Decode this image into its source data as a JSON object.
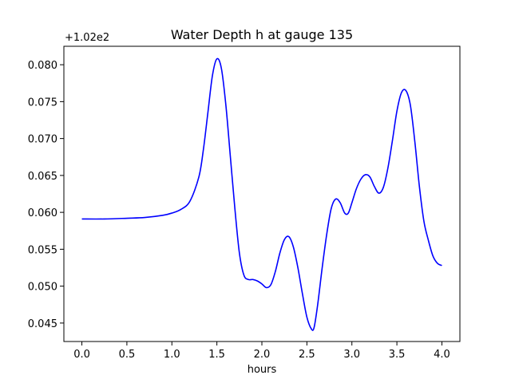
{
  "chart_data": {
    "type": "line",
    "title": "Water Depth h at gauge 135",
    "xlabel": "hours",
    "ylabel": "",
    "y_offset_label": "+1.02e2",
    "xlim": [
      -0.2,
      4.2
    ],
    "ylim": [
      0.0425,
      0.0825
    ],
    "x_ticks": [
      0.0,
      0.5,
      1.0,
      1.5,
      2.0,
      2.5,
      3.0,
      3.5,
      4.0
    ],
    "x_tick_labels": [
      "0.0",
      "0.5",
      "1.0",
      "1.5",
      "2.0",
      "2.5",
      "3.0",
      "3.5",
      "4.0"
    ],
    "y_ticks": [
      0.045,
      0.05,
      0.055,
      0.06,
      0.065,
      0.07,
      0.075,
      0.08
    ],
    "y_tick_labels": [
      "0.045",
      "0.050",
      "0.055",
      "0.060",
      "0.065",
      "0.070",
      "0.075",
      "0.080"
    ],
    "grid": false,
    "line_color": "#0000ff",
    "series": [
      {
        "x": [
          0.0,
          0.25,
          0.5,
          0.7,
          0.9,
          1.0,
          1.1,
          1.2,
          1.3,
          1.35,
          1.4,
          1.45,
          1.5,
          1.55,
          1.6,
          1.65,
          1.7,
          1.75,
          1.8,
          1.85,
          1.9,
          1.95,
          2.0,
          2.05,
          2.1,
          2.15,
          2.2,
          2.25,
          2.3,
          2.35,
          2.4,
          2.45,
          2.5,
          2.55,
          2.58,
          2.62,
          2.67,
          2.72,
          2.77,
          2.82,
          2.87,
          2.92,
          2.96,
          3.0,
          3.05,
          3.1,
          3.15,
          3.2,
          3.25,
          3.3,
          3.35,
          3.4,
          3.45,
          3.5,
          3.55,
          3.6,
          3.65,
          3.7,
          3.75,
          3.8,
          3.85,
          3.9,
          3.95,
          4.0
        ],
        "values": [
          0.0591,
          0.0591,
          0.0592,
          0.0593,
          0.0596,
          0.0599,
          0.0604,
          0.0615,
          0.0648,
          0.0685,
          0.0735,
          0.0785,
          0.0808,
          0.0795,
          0.0745,
          0.0675,
          0.0605,
          0.0545,
          0.0515,
          0.0509,
          0.0509,
          0.0507,
          0.0503,
          0.0498,
          0.0502,
          0.052,
          0.0545,
          0.0563,
          0.0567,
          0.0553,
          0.0525,
          0.049,
          0.0458,
          0.0442,
          0.0444,
          0.0475,
          0.0525,
          0.057,
          0.0605,
          0.0618,
          0.0613,
          0.0599,
          0.0599,
          0.0613,
          0.0632,
          0.0645,
          0.0651,
          0.0648,
          0.0635,
          0.0626,
          0.0634,
          0.066,
          0.0697,
          0.0737,
          0.0762,
          0.0765,
          0.0745,
          0.0695,
          0.0635,
          0.0588,
          0.0562,
          0.0541,
          0.0531,
          0.0528
        ]
      }
    ]
  }
}
